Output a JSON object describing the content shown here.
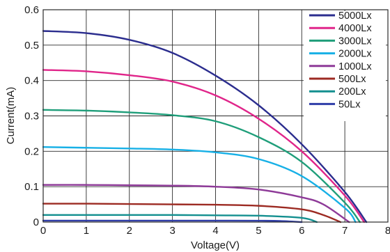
{
  "chart_data": {
    "type": "line",
    "title": "",
    "xlabel": "Voltage(V)",
    "ylabel": "Current(mA)",
    "xlim": [
      0,
      8
    ],
    "ylim": [
      0,
      0.6
    ],
    "x_ticks": [
      "0",
      "1",
      "2",
      "3",
      "4",
      "5",
      "6",
      "7",
      "8"
    ],
    "y_ticks": [
      "0",
      "0.1",
      "0.2",
      "0.3",
      "0.4",
      "0.5",
      "0.6"
    ],
    "grid": true,
    "legend_position": "top-right",
    "series": [
      {
        "name": "5000Lx",
        "color": "#2b2d8e",
        "x": [
          0,
          1,
          2,
          3,
          4,
          5,
          6,
          7,
          7.5
        ],
        "y": [
          0.54,
          0.534,
          0.515,
          0.478,
          0.414,
          0.33,
          0.22,
          0.085,
          0
        ]
      },
      {
        "name": "4000Lx",
        "color": "#e0258a",
        "x": [
          0,
          1,
          2,
          3,
          4,
          5,
          6,
          7,
          7.45
        ],
        "y": [
          0.43,
          0.426,
          0.415,
          0.397,
          0.358,
          0.292,
          0.2,
          0.075,
          0
        ]
      },
      {
        "name": "3000Lx",
        "color": "#1f9e7a",
        "x": [
          0,
          1,
          2,
          3,
          4,
          5,
          6,
          7,
          7.35
        ],
        "y": [
          0.317,
          0.315,
          0.31,
          0.302,
          0.285,
          0.24,
          0.17,
          0.055,
          0
        ]
      },
      {
        "name": "2000Lx",
        "color": "#17b0e6",
        "x": [
          0,
          1,
          2,
          3,
          4,
          5,
          6,
          7,
          7.25
        ],
        "y": [
          0.212,
          0.21,
          0.208,
          0.205,
          0.197,
          0.178,
          0.13,
          0.04,
          0
        ]
      },
      {
        "name": "1000Lx",
        "color": "#8e3a98",
        "x": [
          0,
          1,
          2,
          3,
          4,
          5,
          6,
          6.5,
          7.1
        ],
        "y": [
          0.105,
          0.105,
          0.104,
          0.103,
          0.1,
          0.092,
          0.07,
          0.05,
          0
        ]
      },
      {
        "name": "500Lx",
        "color": "#9c2a22",
        "x": [
          0,
          1,
          2,
          3,
          4,
          5,
          6,
          6.5,
          6.9
        ],
        "y": [
          0.052,
          0.052,
          0.051,
          0.05,
          0.049,
          0.046,
          0.036,
          0.02,
          0
        ]
      },
      {
        "name": "200Lx",
        "color": "#138f8f",
        "x": [
          0,
          1,
          2,
          3,
          4,
          5,
          6,
          6.35
        ],
        "y": [
          0.02,
          0.02,
          0.02,
          0.02,
          0.019,
          0.018,
          0.012,
          0
        ]
      },
      {
        "name": "50Lx",
        "color": "#2f3da8",
        "x": [
          0,
          1,
          2,
          3,
          4,
          5,
          5.5,
          6.0
        ],
        "y": [
          0.004,
          0.004,
          0.004,
          0.004,
          0.004,
          0.0038,
          0.003,
          0
        ]
      }
    ]
  }
}
